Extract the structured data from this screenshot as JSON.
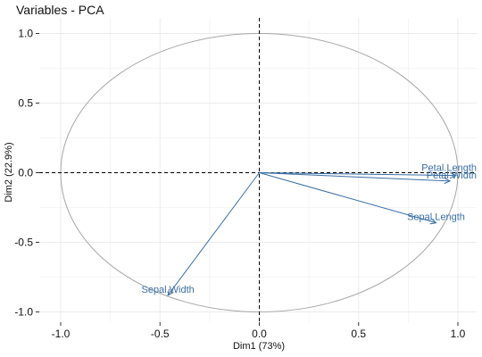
{
  "chart_data": {
    "type": "scatter",
    "subtype": "pca-variable-correlation-circle",
    "title": "Variables - PCA",
    "xlabel": "Dim1 (73%)",
    "ylabel": "Dim2 (22.9%)",
    "xlim": [
      -1.1,
      1.1
    ],
    "ylim": [
      -1.1,
      1.05
    ],
    "xticks": [
      -1.0,
      -0.5,
      0.0,
      0.5,
      1.0
    ],
    "yticks": [
      -1.0,
      -0.5,
      0.0,
      0.5,
      1.0
    ],
    "xtick_labels": [
      "-1.0",
      "-0.5",
      "0.0",
      "0.5",
      "1.0"
    ],
    "ytick_labels": [
      "-1.0",
      "-0.5",
      "0.0",
      "0.5",
      "1.0"
    ],
    "grid": true,
    "unit_circle": true,
    "variables": [
      {
        "name": "Sepal.Length",
        "x": 0.89,
        "y": -0.36
      },
      {
        "name": "Sepal.Width",
        "x": -0.46,
        "y": -0.88
      },
      {
        "name": "Petal.Length",
        "x": 0.99,
        "y": -0.02
      },
      {
        "name": "Petal.Width",
        "x": 0.96,
        "y": -0.06
      }
    ],
    "colors": {
      "arrow": "#3a6ea5",
      "circle": "#a6a6a6",
      "grid": "#ebebeb",
      "zero_line": "#000000"
    }
  }
}
